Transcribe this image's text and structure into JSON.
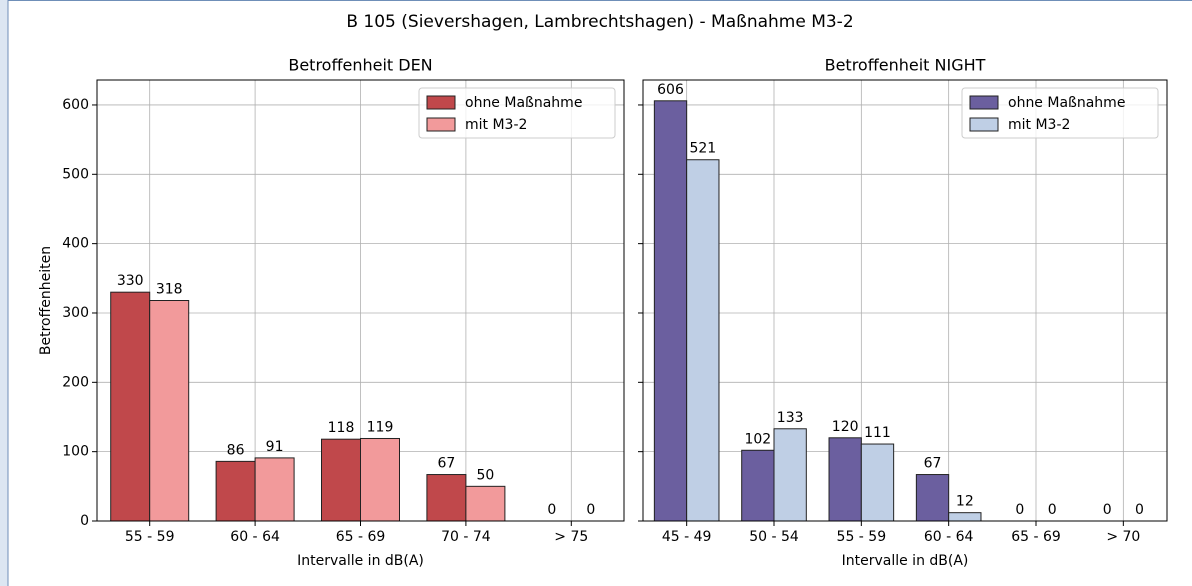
{
  "title": "B 105 (Sievershagen, Lambrechtshagen) - Maßnahme M3-2",
  "chart_data": [
    {
      "type": "bar",
      "title": "Betroffenheit DEN",
      "xlabel": "Intervalle in dB(A)",
      "ylabel": "Betroffenheiten",
      "categories": [
        "55 - 59",
        "60 - 64",
        "65 - 69",
        "70 - 74",
        "> 75"
      ],
      "series": [
        {
          "name": "ohne Maßnahme",
          "color": "#c0484b",
          "values": [
            330,
            86,
            118,
            67,
            0
          ]
        },
        {
          "name": "mit M3-2",
          "color": "#f29a9b",
          "values": [
            318,
            91,
            119,
            50,
            0
          ]
        }
      ],
      "ylim": [
        0,
        636
      ],
      "yticks": [
        0,
        100,
        200,
        300,
        400,
        500,
        600
      ],
      "grid": true,
      "legend": "upper right"
    },
    {
      "type": "bar",
      "title": "Betroffenheit NIGHT",
      "xlabel": "Intervalle in dB(A)",
      "categories": [
        "45 - 49",
        "50 - 54",
        "55 - 59",
        "60 - 64",
        "65 - 69",
        "> 70"
      ],
      "series": [
        {
          "name": "ohne Maßnahme",
          "color": "#6b5f9f",
          "values": [
            606,
            102,
            120,
            67,
            0,
            0
          ]
        },
        {
          "name": "mit M3-2",
          "color": "#bfcfe5",
          "values": [
            521,
            133,
            111,
            12,
            0,
            0
          ]
        }
      ],
      "ylim": [
        0,
        636
      ],
      "yticks": [
        0,
        100,
        200,
        300,
        400,
        500,
        600
      ],
      "show_ytick_labels": false,
      "grid": true,
      "legend": "upper right"
    }
  ]
}
